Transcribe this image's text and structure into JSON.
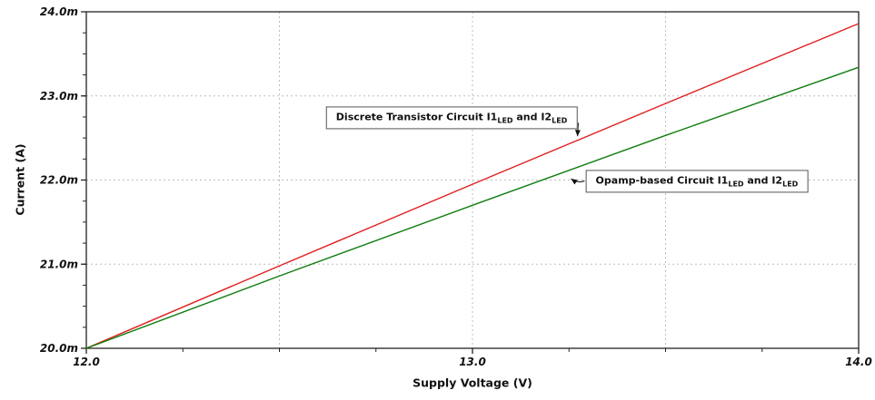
{
  "chart_data": {
    "type": "line",
    "title": "",
    "xlabel": "Supply Voltage (V)",
    "ylabel": "Current (A)",
    "xlim": [
      12.0,
      14.0
    ],
    "ylim": [
      0.02,
      0.024
    ],
    "x_major_ticks": [
      12.0,
      13.0,
      14.0
    ],
    "x_tick_labels": [
      "12.0",
      "13.0",
      "14.0"
    ],
    "x_minor_step": 0.25,
    "y_major_ticks": [
      0.02,
      0.021,
      0.022,
      0.023,
      0.024
    ],
    "y_tick_labels": [
      "20.0m",
      "21.0m",
      "22.0m",
      "23.0m",
      "24.0m"
    ],
    "y_minor_step": 0.00025,
    "grid": true,
    "grid_x": [
      12.5,
      13.0,
      13.5
    ],
    "grid_y": [
      0.021,
      0.022,
      0.023
    ],
    "legend_position": "annotations-on-plot",
    "series": [
      {
        "name": "discrete-transistor-circuit",
        "label_parts": [
          {
            "t": "Discrete Transistor Circuit I1"
          },
          {
            "sub": "LED"
          },
          {
            "t": " and I2"
          },
          {
            "sub": "LED"
          }
        ],
        "color": "#e02020",
        "x": [
          12.0,
          12.5,
          13.0,
          13.5,
          14.0
        ],
        "y": [
          0.02,
          0.02098,
          0.02195,
          0.02291,
          0.02386
        ]
      },
      {
        "name": "opamp-based-circuit",
        "label_parts": [
          {
            "t": "Opamp-based Circuit I1"
          },
          {
            "sub": "LED"
          },
          {
            "t": " and I2"
          },
          {
            "sub": "LED"
          }
        ],
        "color": "#0e7d0e",
        "x": [
          12.0,
          12.5,
          13.0,
          13.5,
          14.0
        ],
        "y": [
          0.02,
          0.02086,
          0.0217,
          0.02253,
          0.02334
        ]
      }
    ],
    "annotations": [
      {
        "series": 0,
        "box_center_v": 12.946,
        "box_center_a": 0.022739,
        "arrow_tip_v": 13.272,
        "arrow_tip_a": 0.02252,
        "arrow_from": "right"
      },
      {
        "series": 1,
        "box_center_v": 13.581,
        "box_center_a": 0.021989,
        "arrow_tip_v": 13.255,
        "arrow_tip_a": 0.022016,
        "arrow_from": "left"
      }
    ],
    "colors": {
      "grid": "#bdbdbd",
      "axis": "#222222",
      "background": "#ffffff"
    }
  }
}
